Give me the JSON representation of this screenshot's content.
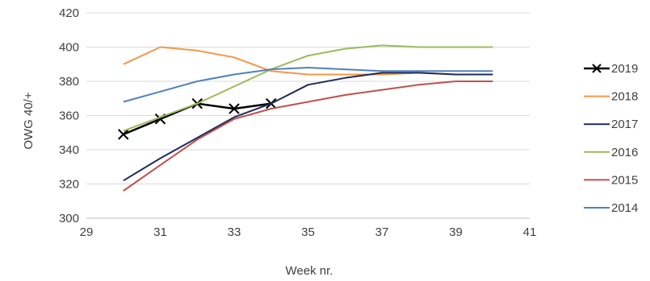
{
  "chart_data": {
    "type": "line",
    "xlabel": "Week nr.",
    "ylabel": "OWG 40/+",
    "xlim": [
      29,
      41
    ],
    "ylim": [
      300,
      420
    ],
    "x_ticks": [
      29,
      31,
      33,
      35,
      37,
      39,
      41
    ],
    "y_ticks": [
      300,
      320,
      340,
      360,
      380,
      400,
      420
    ],
    "grid": "horizontal",
    "legend_position": "right",
    "series": [
      {
        "name": "2019",
        "color": "#000000",
        "marker": "x",
        "x": [
          30,
          31,
          32,
          33,
          34
        ],
        "values": [
          349,
          358,
          367,
          364,
          367
        ]
      },
      {
        "name": "2018",
        "color": "#f79646",
        "marker": "none",
        "x": [
          30,
          31,
          32,
          33,
          34,
          35,
          36,
          37,
          38,
          39,
          40
        ],
        "values": [
          390,
          400,
          398,
          394,
          386,
          384,
          384,
          384,
          385,
          384,
          384
        ]
      },
      {
        "name": "2017",
        "color": "#1f2a5c",
        "marker": "none",
        "x": [
          30,
          31,
          32,
          33,
          34,
          35,
          36,
          37,
          38,
          39,
          40
        ],
        "values": [
          322,
          335,
          347,
          359,
          367,
          378,
          382,
          385,
          385,
          384,
          384
        ]
      },
      {
        "name": "2016",
        "color": "#9bbb59",
        "marker": "none",
        "x": [
          30,
          31,
          32,
          33,
          34,
          35,
          36,
          37,
          38,
          39,
          40
        ],
        "values": [
          351,
          359,
          367,
          377,
          387,
          395,
          399,
          401,
          400,
          400,
          400
        ]
      },
      {
        "name": "2015",
        "color": "#c0504d",
        "marker": "none",
        "x": [
          30,
          31,
          32,
          33,
          34,
          35,
          36,
          37,
          38,
          39,
          40
        ],
        "values": [
          316,
          331,
          346,
          358,
          364,
          368,
          372,
          375,
          378,
          380,
          380
        ]
      },
      {
        "name": "2014",
        "color": "#4f81bd",
        "marker": "none",
        "x": [
          30,
          31,
          32,
          33,
          34,
          35,
          36,
          37,
          38,
          39,
          40
        ],
        "values": [
          368,
          374,
          380,
          384,
          387,
          388,
          387,
          386,
          386,
          386,
          386
        ]
      }
    ]
  }
}
